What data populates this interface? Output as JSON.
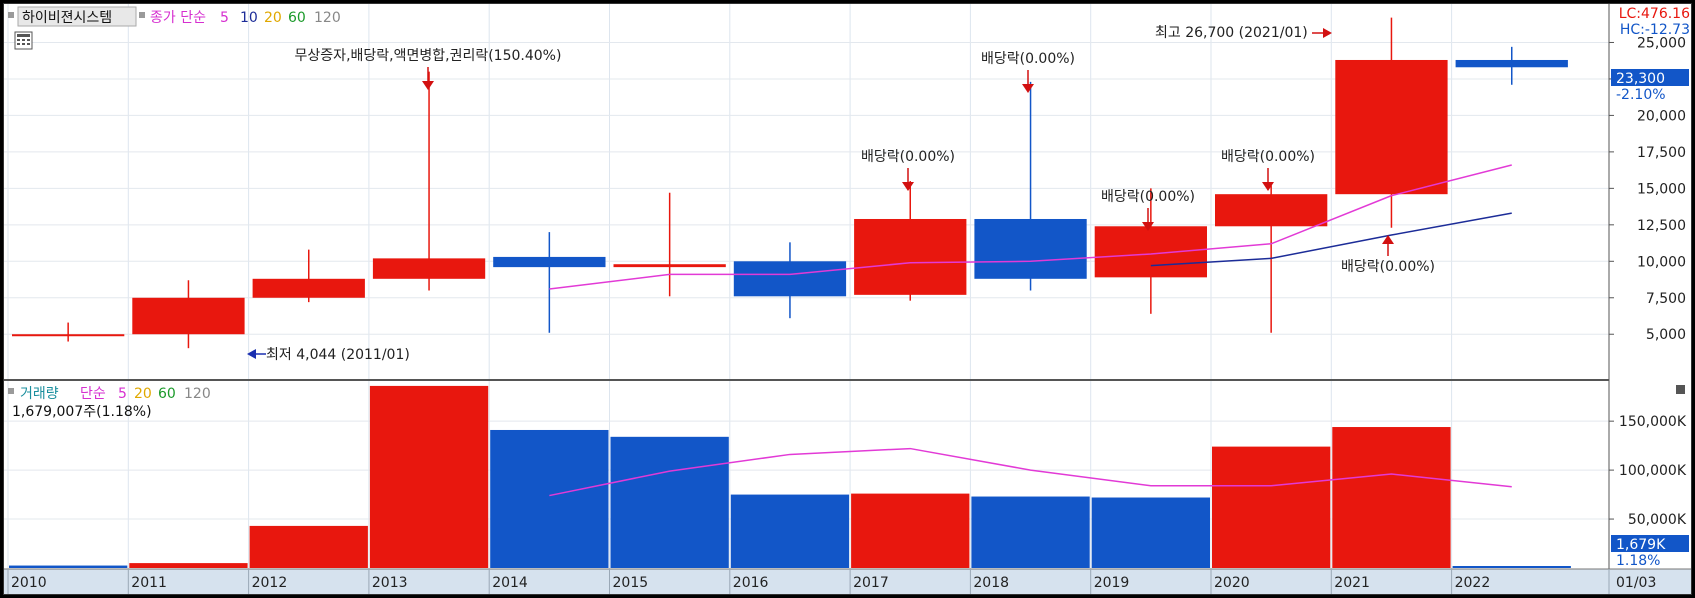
{
  "header": {
    "title": "하이비젼시스템",
    "ma_label": "종가 단순",
    "ma_periods": [
      "5",
      "10",
      "20",
      "60",
      "120"
    ],
    "lc": "LC:476.16",
    "hc": "HC:-12.73"
  },
  "volume_header": {
    "title": "거래량",
    "ma_label": "단순",
    "ma_periods": [
      "5",
      "20",
      "60",
      "120"
    ],
    "current": "1,679,007주(1.18%)"
  },
  "price_badge": {
    "value": "23,300",
    "change": "-2.10%"
  },
  "volume_badge": {
    "value": "1,679K",
    "change": "1.18%"
  },
  "x_axis_last": "01/03",
  "annotations": {
    "high": "최고 26,700 (2021/01)",
    "low": "최저 4,044 (2011/01)",
    "ev2013": "무상증자,배당락,액면병합,권리락(150.40%)",
    "ev2017": "배당락(0.00%)",
    "ev2018": "배당락(0.00%)",
    "ev2019": "배당락(0.00%)",
    "ev2020": "배당락(0.00%)",
    "ev2021": "배당락(0.00%)"
  },
  "colors": {
    "up": "#e8170e",
    "down": "#1256c8",
    "ma5": "#e23ad6",
    "ma10": "#1c2c98"
  },
  "chart_data": [
    {
      "type": "candlestick",
      "title": "하이비젼시스템",
      "x": [
        "2010",
        "2011",
        "2012",
        "2013",
        "2014",
        "2015",
        "2016",
        "2017",
        "2018",
        "2019",
        "2020",
        "2021",
        "2022"
      ],
      "x_ticks": [
        "2010",
        "2011",
        "2012",
        "2013",
        "2014",
        "2015",
        "2016",
        "2017",
        "2018",
        "2019",
        "2020",
        "2021",
        "2022"
      ],
      "ohlc": [
        {
          "x": "2010",
          "open": 5000,
          "high": 5800,
          "low": 4500,
          "close": 5000
        },
        {
          "x": "2011",
          "open": 5000,
          "high": 8700,
          "low": 4044,
          "close": 7500
        },
        {
          "x": "2012",
          "open": 7500,
          "high": 10800,
          "low": 7200,
          "close": 8800
        },
        {
          "x": "2013",
          "open": 8800,
          "high": 23000,
          "low": 8000,
          "close": 10200
        },
        {
          "x": "2014",
          "open": 10300,
          "high": 12000,
          "low": 5100,
          "close": 9600
        },
        {
          "x": "2015",
          "open": 9600,
          "high": 14700,
          "low": 7600,
          "close": 9800
        },
        {
          "x": "2016",
          "open": 10000,
          "high": 11300,
          "low": 6100,
          "close": 7600
        },
        {
          "x": "2017",
          "open": 7700,
          "high": 15500,
          "low": 7300,
          "close": 12900
        },
        {
          "x": "2018",
          "open": 12900,
          "high": 22300,
          "low": 8000,
          "close": 8800
        },
        {
          "x": "2019",
          "open": 8900,
          "high": 15000,
          "low": 6400,
          "close": 12400
        },
        {
          "x": "2020",
          "open": 12400,
          "high": 15200,
          "low": 5100,
          "close": 14600
        },
        {
          "x": "2021",
          "open": 14600,
          "high": 26700,
          "low": 12300,
          "close": 23800
        },
        {
          "x": "2022",
          "open": 23800,
          "high": 24700,
          "low": 22100,
          "close": 23300
        }
      ],
      "series": [
        {
          "name": "5",
          "values": [
            null,
            null,
            null,
            null,
            8100,
            9100,
            9100,
            9900,
            10000,
            10500,
            11200,
            14500,
            16600
          ]
        },
        {
          "name": "10",
          "values": [
            null,
            null,
            null,
            null,
            null,
            null,
            null,
            null,
            null,
            9700,
            10200,
            11800,
            13300
          ]
        }
      ],
      "ylim": [
        2000,
        27500
      ],
      "y_ticks": [
        5000,
        7500,
        10000,
        12500,
        15000,
        17500,
        20000,
        22500,
        25000
      ],
      "y_tick_labels": [
        "5,000",
        "7,500",
        "10,000",
        "12,500",
        "15,000",
        "17,500",
        "20,000",
        "22,500",
        "25,000"
      ],
      "grid": true
    },
    {
      "type": "bar",
      "title": "거래량",
      "categories": [
        "2010",
        "2011",
        "2012",
        "2013",
        "2014",
        "2015",
        "2016",
        "2017",
        "2018",
        "2019",
        "2020",
        "2021",
        "2022"
      ],
      "values": [
        2500,
        5000,
        43000,
        186000,
        141000,
        134000,
        75000,
        76000,
        73000,
        72000,
        124000,
        144000,
        1679
      ],
      "directions": [
        "down",
        "up",
        "up",
        "up",
        "down",
        "down",
        "down",
        "up",
        "down",
        "down",
        "up",
        "up",
        "down"
      ],
      "series": [
        {
          "name": "5",
          "values": [
            null,
            null,
            null,
            null,
            74000,
            99000,
            116000,
            122000,
            100000,
            84000,
            84000,
            96000,
            83000
          ]
        }
      ],
      "ylim": [
        0,
        190000
      ],
      "y_ticks": [
        50000,
        100000,
        150000
      ],
      "y_tick_labels": [
        "50,000K",
        "100,000K",
        "150,000K"
      ],
      "grid": true
    }
  ]
}
